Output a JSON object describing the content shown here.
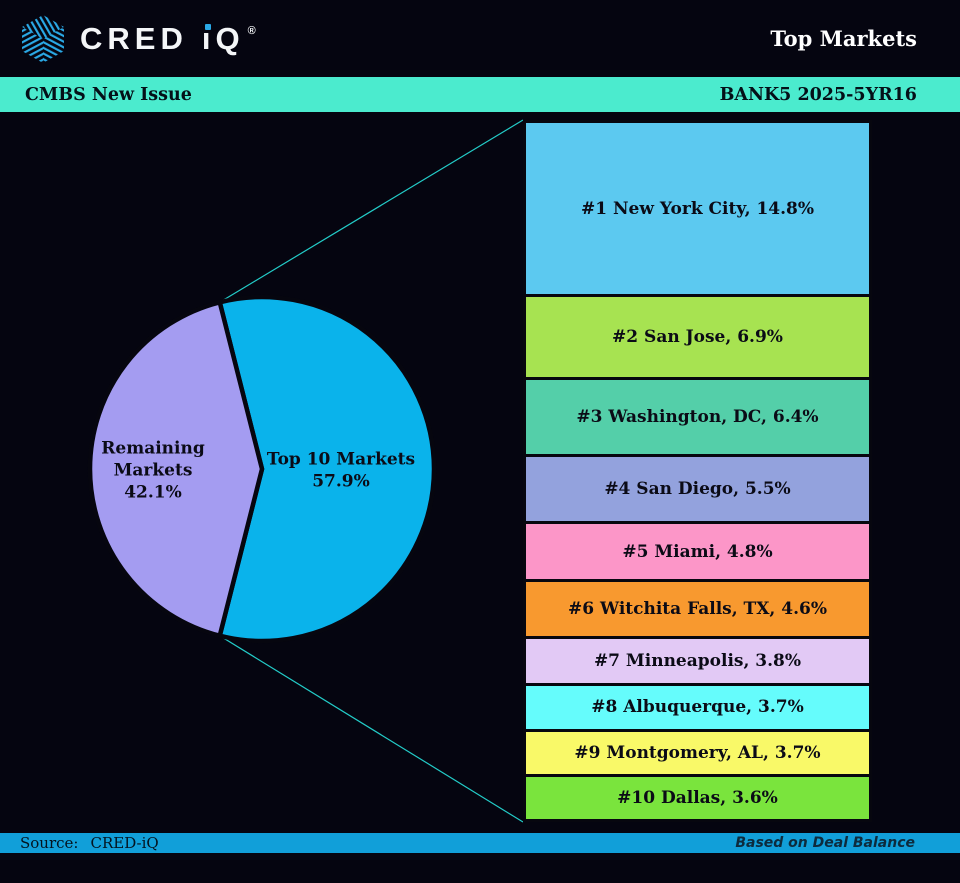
{
  "header": {
    "logo": {
      "part1": "CRED",
      "i": "i",
      "part2": "Q",
      "reg": "®"
    },
    "title": "Top Markets"
  },
  "banner": {
    "left": "CMBS New Issue",
    "right": "BANK5 2025-5YR16"
  },
  "footer": {
    "source_label": "Source:",
    "source_value": "CRED-iQ",
    "note": "Based on Deal Balance"
  },
  "colors": {
    "background": "#050510",
    "banner_teal": "#4bebce",
    "footer_blue": "#119fd9",
    "logo_blue": "#2aa9e6",
    "connector": "#23ccc8",
    "wedge_stroke": "#06060f"
  },
  "chart_data": {
    "type": "pie",
    "title": "Top Markets",
    "subtitle": "BANK5 2025-5YR16",
    "units": "percent of deal balance",
    "labels_inside": true,
    "slices": [
      {
        "name": "Top 10 Markets",
        "value": 57.9,
        "color": "#0ab3eb",
        "label": "Top 10 Markets\n57.9%"
      },
      {
        "name": "Remaining Markets",
        "value": 42.1,
        "color": "#a49cf1",
        "label": "Remaining\nMarkets\n42.1%"
      }
    ],
    "breakdown": {
      "type": "bar",
      "total": 57.9,
      "segments": [
        {
          "rank": "#1",
          "market": "New York City",
          "value": 14.8,
          "label": "#1 New York City, 14.8%",
          "color": "#5cc9f0"
        },
        {
          "rank": "#2",
          "market": "San Jose",
          "value": 6.9,
          "label": "#2 San Jose, 6.9%",
          "color": "#a7e351"
        },
        {
          "rank": "#3",
          "market": "Washington, DC",
          "value": 6.4,
          "label": "#3 Washington, DC, 6.4%",
          "color": "#54cfa9"
        },
        {
          "rank": "#4",
          "market": "San Diego",
          "value": 5.5,
          "label": "#4 San Diego, 5.5%",
          "color": "#93a2dd"
        },
        {
          "rank": "#5",
          "market": "Miami",
          "value": 4.8,
          "label": "#5 Miami, 4.8%",
          "color": "#fc96c8"
        },
        {
          "rank": "#6",
          "market": "Witchita Falls, TX",
          "value": 4.6,
          "label": "#6 Witchita Falls, TX, 4.6%",
          "color": "#f8992f"
        },
        {
          "rank": "#7",
          "market": "Minneapolis",
          "value": 3.8,
          "label": "#7 Minneapolis, 3.8%",
          "color": "#e2c9f5"
        },
        {
          "rank": "#8",
          "market": "Albuquerque",
          "value": 3.7,
          "label": "#8 Albuquerque, 3.7%",
          "color": "#65fcfc"
        },
        {
          "rank": "#9",
          "market": "Montgomery, AL",
          "value": 3.7,
          "label": "#9 Montgomery, AL, 3.7%",
          "color": "#f9f968"
        },
        {
          "rank": "#10",
          "market": "Dallas",
          "value": 3.6,
          "label": "#10 Dallas, 3.6%",
          "color": "#7ae43d"
        }
      ]
    }
  }
}
